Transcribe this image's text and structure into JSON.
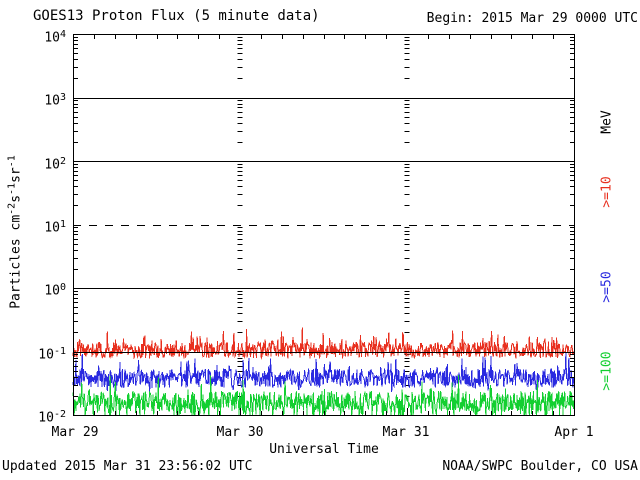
{
  "chart_data": {
    "type": "line",
    "title": "GOES13 Proton Flux (5 minute data)",
    "begin_label": "Begin: 2015 Mar 29 0000 UTC",
    "updated_label": "Updated 2015 Mar 31 23:56:02 UTC",
    "source_label": "NOAA/SWPC Boulder, CO USA",
    "xlabel": "Universal Time",
    "ylabel_parts": {
      "p1": "Particles cm",
      "e1": "-2",
      "p2": "s",
      "e2": "-1",
      "p3": "sr",
      "e3": "-1"
    },
    "units_label": "MeV",
    "x_span_hours": 72,
    "cadence_minutes": 5,
    "n_points": 864,
    "x_ticks": [
      {
        "label": "Mar 29"
      },
      {
        "label": "Mar 30"
      },
      {
        "label": "Mar 31"
      },
      {
        "label": "Apr 1"
      }
    ],
    "ylim_log": [
      -2,
      4
    ],
    "y_ticks": [
      {
        "base": "10",
        "exp": "4"
      },
      {
        "base": "10",
        "exp": "3"
      },
      {
        "base": "10",
        "exp": "2"
      },
      {
        "base": "10",
        "exp": "1"
      },
      {
        "base": "10",
        "exp": "0"
      },
      {
        "base": "10",
        "exp": "-1"
      },
      {
        "base": "10",
        "exp": "-2"
      }
    ],
    "grid": {
      "solid_exponents": [
        3,
        2,
        0,
        -1
      ],
      "dashed_exponents": [
        1
      ],
      "day_column_indices": [
        1,
        2
      ],
      "minor_log_ticks": true,
      "hour_tick_step": 3
    },
    "series": [
      {
        "name": "p_gte_10MeV",
        "label": ">=10",
        "color": "#e8301f",
        "median_flux": 0.105,
        "approx_range": [
          0.06,
          0.38
        ],
        "gen": {
          "seed": 101,
          "log_center": -0.98,
          "log_jitter": 0.13,
          "spike_prob": 0.12,
          "spike_log": 0.25,
          "big_spike_prob": 0.006,
          "big_spike_log": 0.2,
          "drop_prob": 0,
          "drop_log": 0,
          "clip_log": [
            -2,
            4
          ]
        }
      },
      {
        "name": "p_gte_50MeV",
        "label": ">=50",
        "color": "#2929e0",
        "median_flux": 0.04,
        "approx_range": [
          0.02,
          0.1
        ],
        "gen": {
          "seed": 202,
          "log_center": -1.42,
          "log_jitter": 0.15,
          "spike_prob": 0.12,
          "spike_log": 0.3,
          "big_spike_prob": 0,
          "big_spike_log": 0,
          "drop_prob": 0.05,
          "drop_log": 0.12,
          "clip_log": [
            -2,
            4
          ]
        }
      },
      {
        "name": "p_gte_100MeV",
        "label": ">=100",
        "color": "#13cf31",
        "median_flux": 0.017,
        "approx_range": [
          0.01,
          0.035
        ],
        "gen": {
          "seed": 303,
          "log_center": -1.78,
          "log_jitter": 0.16,
          "spike_prob": 0.1,
          "spike_log": 0.28,
          "big_spike_prob": 0,
          "big_spike_log": 0,
          "drop_prob": 0.25,
          "drop_log": 0.35,
          "clip_log": [
            -2,
            4
          ]
        }
      }
    ]
  }
}
